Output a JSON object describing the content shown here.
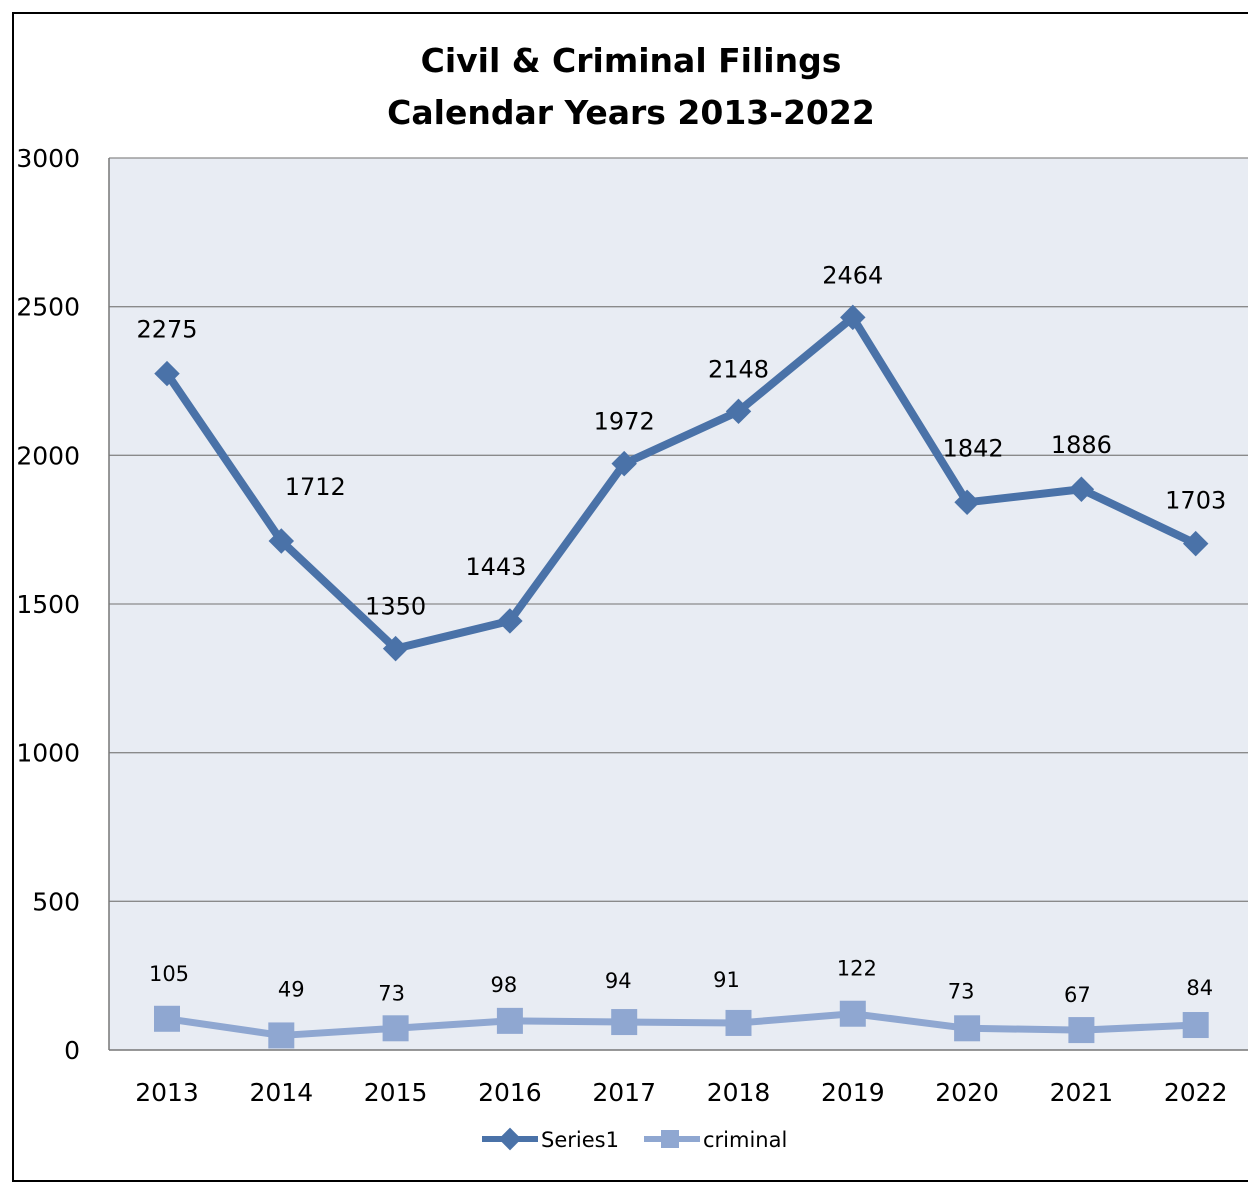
{
  "chart_data": {
    "type": "line",
    "title": "Civil & Criminal Filings",
    "subtitle": "Calendar Years 2013-2022",
    "xlabel": "",
    "ylabel": "",
    "categories": [
      "2013",
      "2014",
      "2015",
      "2016",
      "2017",
      "2018",
      "2019",
      "2020",
      "2021",
      "2022"
    ],
    "y_ticks": [
      "0",
      "500",
      "1000",
      "1500",
      "2000",
      "2500",
      "3000"
    ],
    "ylim": [
      0,
      3000
    ],
    "grid": true,
    "legend_position": "bottom",
    "series": [
      {
        "name": "Series1",
        "values": [
          2275,
          1712,
          1350,
          1443,
          1972,
          2148,
          2464,
          1842,
          1886,
          1703
        ],
        "labels": [
          "2275",
          "1712",
          "1350",
          "1443",
          "1972",
          "2148",
          "2464",
          "1842",
          "1886",
          "1703"
        ],
        "color": "#4a72a8",
        "marker": "diamond"
      },
      {
        "name": "criminal",
        "values": [
          105,
          49,
          73,
          98,
          94,
          91,
          122,
          73,
          67,
          84
        ],
        "labels": [
          "105",
          "49",
          "73",
          "98",
          "94",
          "91",
          "122",
          "73",
          "67",
          "84"
        ],
        "color": "#8fa7d1",
        "marker": "square"
      }
    ],
    "plot_background": "#e8ecf3",
    "gridline_color": "#8a8a8a"
  }
}
